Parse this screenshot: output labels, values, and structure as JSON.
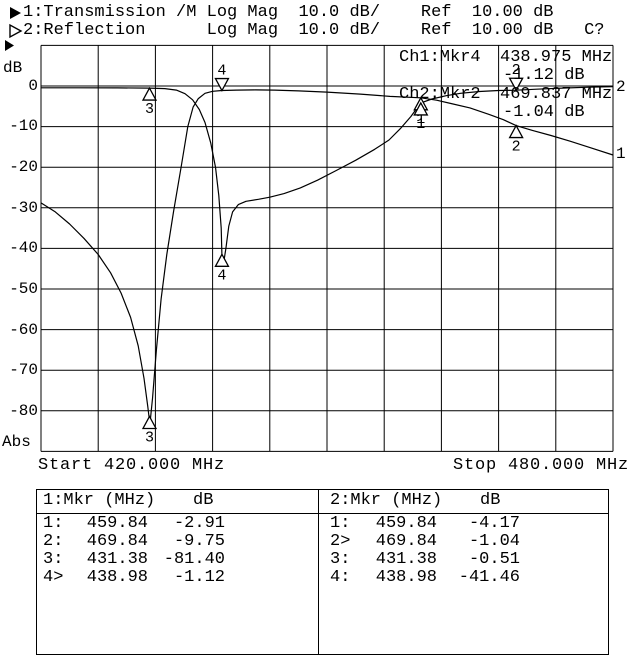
{
  "header": {
    "line1": "1:Transmission /M Log Mag  10.0 dB/    Ref  10.00 dB",
    "line2": "2:Reflection      Log Mag  10.0 dB/    Ref  10.00 dB   C?"
  },
  "readout": {
    "ch1_label": "Ch1:Mkr4",
    "ch1_freq": "438.975 MHz",
    "ch1_value": "-1.12 dB",
    "ch2_label": "Ch2:Mkr2",
    "ch2_freq": "469.837 MHz",
    "ch2_value": "-1.04 dB"
  },
  "axis": {
    "unit_top": "dB",
    "unit_bottom": "Abs",
    "y_ticks": [
      "0",
      "-10",
      "-20",
      "-30",
      "-40",
      "-50",
      "-60",
      "-70",
      "-80"
    ],
    "start_label": "Start 420.000 MHz",
    "stop_label": "Stop 480.000 MHz"
  },
  "chart_data": {
    "type": "line",
    "title": "",
    "x_axis": {
      "unit": "MHz",
      "min": 420,
      "max": 480,
      "divisions": 10
    },
    "y_axis": {
      "unit": "dB",
      "min": -90,
      "max": 10,
      "scale_per_div": 10,
      "ref_level": 10,
      "divisions": 10,
      "grid": true
    },
    "series": [
      {
        "name": "Transmission",
        "end_label": "1",
        "points": [
          [
            420,
            -28.8
          ],
          [
            421.5,
            -31
          ],
          [
            423,
            -34
          ],
          [
            424.5,
            -37.5
          ],
          [
            426,
            -41.5
          ],
          [
            427.3,
            -46
          ],
          [
            428.4,
            -51
          ],
          [
            429.4,
            -57
          ],
          [
            430.2,
            -64
          ],
          [
            430.8,
            -72
          ],
          [
            431.2,
            -79
          ],
          [
            431.42,
            -83.3
          ],
          [
            431.7,
            -77
          ],
          [
            432.1,
            -65
          ],
          [
            432.6,
            -52.5
          ],
          [
            433.2,
            -41.5
          ],
          [
            433.9,
            -31
          ],
          [
            434.7,
            -20
          ],
          [
            435.4,
            -10
          ],
          [
            435.95,
            -5.2
          ],
          [
            436.5,
            -3.1
          ],
          [
            437.2,
            -1.8
          ],
          [
            438,
            -1.3
          ],
          [
            438.98,
            -1.12
          ],
          [
            440.5,
            -1.0
          ],
          [
            442.5,
            -0.95
          ],
          [
            444.5,
            -1.0
          ],
          [
            447,
            -1.2
          ],
          [
            450,
            -1.5
          ],
          [
            453.5,
            -2.0
          ],
          [
            456.6,
            -2.55
          ],
          [
            459.84,
            -2.91
          ],
          [
            461.5,
            -3.5
          ],
          [
            463,
            -4.3
          ],
          [
            465,
            -5.4
          ],
          [
            467,
            -7.0
          ],
          [
            468.5,
            -8.3
          ],
          [
            469.84,
            -9.75
          ],
          [
            471.5,
            -10.9
          ],
          [
            473.5,
            -12.2
          ],
          [
            475.5,
            -13.6
          ],
          [
            477.5,
            -15.1
          ],
          [
            480,
            -17.0
          ]
        ]
      },
      {
        "name": "Reflection",
        "end_label": "2",
        "points": [
          [
            420,
            -0.45
          ],
          [
            424,
            -0.45
          ],
          [
            428,
            -0.48
          ],
          [
            431.38,
            -0.51
          ],
          [
            433,
            -0.65
          ],
          [
            434.2,
            -1.0
          ],
          [
            435.1,
            -1.9
          ],
          [
            435.9,
            -3.4
          ],
          [
            436.6,
            -5.8
          ],
          [
            437.2,
            -9
          ],
          [
            437.8,
            -14
          ],
          [
            438.3,
            -20
          ],
          [
            438.65,
            -27
          ],
          [
            438.9,
            -35
          ],
          [
            438.98,
            -41.46
          ],
          [
            439.15,
            -43.6
          ],
          [
            439.4,
            -40
          ],
          [
            439.7,
            -34.5
          ],
          [
            440.1,
            -31
          ],
          [
            440.7,
            -29.2
          ],
          [
            441.5,
            -28.4
          ],
          [
            442.8,
            -27.9
          ],
          [
            444,
            -27.4
          ],
          [
            445.5,
            -26.5
          ],
          [
            447.2,
            -25.1
          ],
          [
            449,
            -23.2
          ],
          [
            451,
            -20.8
          ],
          [
            453,
            -18.3
          ],
          [
            455,
            -15.6
          ],
          [
            456.5,
            -13.3
          ],
          [
            457.7,
            -10.5
          ],
          [
            458.8,
            -7.5
          ],
          [
            459.84,
            -4.17
          ],
          [
            461,
            -3.2
          ],
          [
            462.5,
            -2.4
          ],
          [
            464,
            -1.8
          ],
          [
            466,
            -1.35
          ],
          [
            468,
            -1.12
          ],
          [
            469.84,
            -1.04
          ],
          [
            472,
            -0.8
          ],
          [
            475,
            -0.5
          ],
          [
            477.5,
            -0.3
          ],
          [
            480,
            -0.15
          ]
        ]
      }
    ],
    "markers": [
      {
        "channel": 1,
        "n": "1",
        "mhz": 459.84,
        "db": -2.91,
        "style": "up"
      },
      {
        "channel": 1,
        "n": "2",
        "mhz": 469.84,
        "db": -9.75,
        "style": "up"
      },
      {
        "channel": 1,
        "n": "3",
        "mhz": 431.38,
        "db": -81.4,
        "style": "up"
      },
      {
        "channel": 1,
        "n": "4",
        "mhz": 438.98,
        "db": -1.12,
        "style": "down"
      },
      {
        "channel": 2,
        "n": "1",
        "mhz": 459.84,
        "db": -4.17,
        "style": "up"
      },
      {
        "channel": 2,
        "n": "2",
        "mhz": 469.84,
        "db": -1.04,
        "style": "down"
      },
      {
        "channel": 2,
        "n": "3",
        "mhz": 431.38,
        "db": -0.51,
        "style": "up"
      },
      {
        "channel": 2,
        "n": "4",
        "mhz": 438.98,
        "db": -41.46,
        "style": "up"
      }
    ]
  },
  "tables": [
    {
      "header_left": "1:Mkr (MHz)",
      "header_right": "dB",
      "rows": [
        [
          "1:",
          "459.84",
          "-2.91"
        ],
        [
          "2:",
          "469.84",
          "-9.75"
        ],
        [
          "3:",
          "431.38",
          "-81.40"
        ],
        [
          "4>",
          "438.98",
          "-1.12"
        ]
      ]
    },
    {
      "header_left": "2:Mkr (MHz)",
      "header_right": "dB",
      "rows": [
        [
          "1:",
          "459.84",
          "-4.17"
        ],
        [
          "2>",
          "469.84",
          "-1.04"
        ],
        [
          "3:",
          "431.38",
          "-0.51"
        ],
        [
          "4:",
          "438.98",
          "-41.46"
        ]
      ]
    }
  ]
}
